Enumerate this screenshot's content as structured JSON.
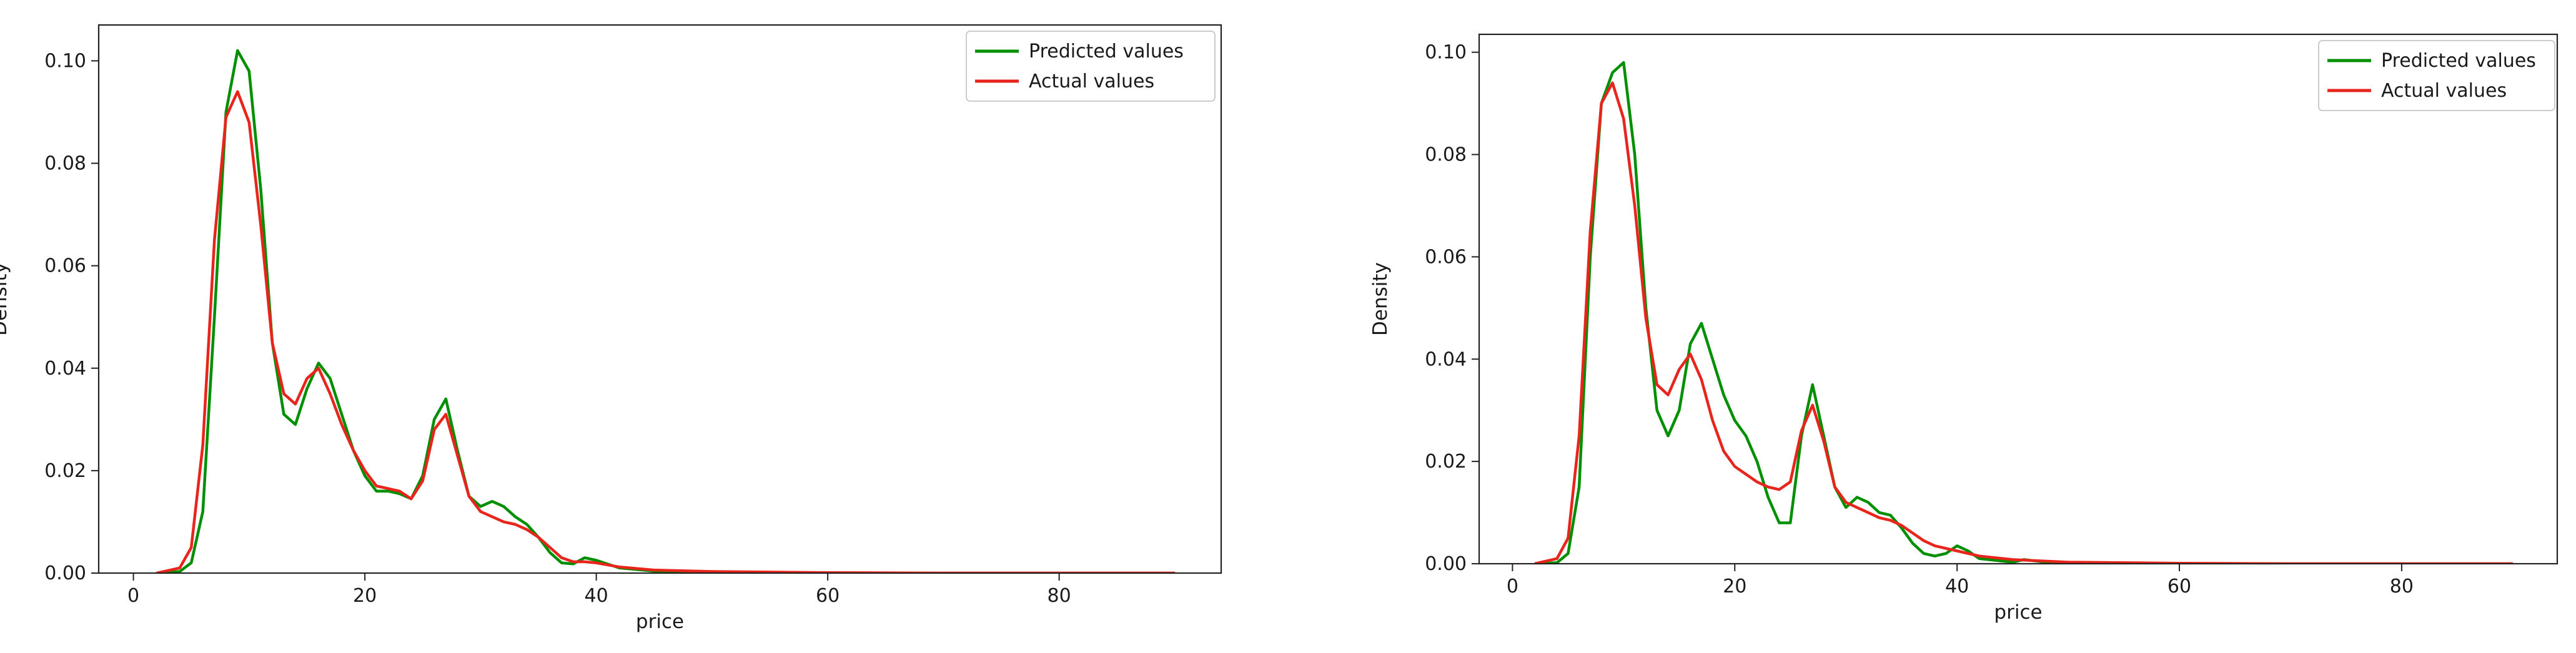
{
  "chart_data": [
    {
      "type": "line",
      "title": "",
      "xlabel": "price",
      "ylabel": "Density",
      "xlim": [
        -3,
        94
      ],
      "ylim": [
        0,
        0.107
      ],
      "xticks": [
        0,
        20,
        40,
        60,
        80
      ],
      "yticks": [
        0.0,
        0.02,
        0.04,
        0.06,
        0.08,
        0.1
      ],
      "ytick_labels": [
        "0.00",
        "0.02",
        "0.04",
        "0.06",
        "0.08",
        "0.10"
      ],
      "grid": false,
      "legend_position": "top-right",
      "series": [
        {
          "name": "Predicted values",
          "color": "#008f00",
          "points": [
            [
              2,
              0
            ],
            [
              4,
              0.0003
            ],
            [
              5,
              0.002
            ],
            [
              6,
              0.012
            ],
            [
              7,
              0.05
            ],
            [
              8,
              0.09
            ],
            [
              9,
              0.102
            ],
            [
              10,
              0.098
            ],
            [
              11,
              0.075
            ],
            [
              12,
              0.045
            ],
            [
              13,
              0.031
            ],
            [
              14,
              0.029
            ],
            [
              15,
              0.036
            ],
            [
              16,
              0.041
            ],
            [
              17,
              0.038
            ],
            [
              18,
              0.031
            ],
            [
              19,
              0.024
            ],
            [
              20,
              0.019
            ],
            [
              21,
              0.016
            ],
            [
              22,
              0.016
            ],
            [
              23,
              0.0155
            ],
            [
              24,
              0.0145
            ],
            [
              25,
              0.019
            ],
            [
              26,
              0.03
            ],
            [
              27,
              0.034
            ],
            [
              28,
              0.024
            ],
            [
              29,
              0.015
            ],
            [
              30,
              0.013
            ],
            [
              31,
              0.014
            ],
            [
              32,
              0.013
            ],
            [
              33,
              0.011
            ],
            [
              34,
              0.0095
            ],
            [
              35,
              0.007
            ],
            [
              36,
              0.004
            ],
            [
              37,
              0.002
            ],
            [
              38,
              0.0018
            ],
            [
              39,
              0.003
            ],
            [
              40,
              0.0025
            ],
            [
              42,
              0.001
            ],
            [
              45,
              0.0004
            ],
            [
              50,
              0.0002
            ],
            [
              60,
              0.0
            ],
            [
              70,
              0.0
            ],
            [
              80,
              0.0
            ],
            [
              90,
              0.0
            ]
          ]
        },
        {
          "name": "Actual values",
          "color": "#e8251c",
          "points": [
            [
              2,
              0
            ],
            [
              4,
              0.001
            ],
            [
              5,
              0.005
            ],
            [
              6,
              0.025
            ],
            [
              7,
              0.065
            ],
            [
              8,
              0.089
            ],
            [
              9,
              0.094
            ],
            [
              10,
              0.088
            ],
            [
              11,
              0.068
            ],
            [
              12,
              0.045
            ],
            [
              13,
              0.035
            ],
            [
              14,
              0.033
            ],
            [
              15,
              0.038
            ],
            [
              16,
              0.04
            ],
            [
              17,
              0.035
            ],
            [
              18,
              0.029
            ],
            [
              19,
              0.024
            ],
            [
              20,
              0.02
            ],
            [
              21,
              0.017
            ],
            [
              22,
              0.0165
            ],
            [
              23,
              0.016
            ],
            [
              24,
              0.0145
            ],
            [
              25,
              0.018
            ],
            [
              26,
              0.028
            ],
            [
              27,
              0.031
            ],
            [
              28,
              0.023
            ],
            [
              29,
              0.015
            ],
            [
              30,
              0.012
            ],
            [
              31,
              0.011
            ],
            [
              32,
              0.01
            ],
            [
              33,
              0.0095
            ],
            [
              34,
              0.0085
            ],
            [
              35,
              0.007
            ],
            [
              36,
              0.005
            ],
            [
              37,
              0.003
            ],
            [
              38,
              0.0022
            ],
            [
              39,
              0.0022
            ],
            [
              40,
              0.002
            ],
            [
              42,
              0.0012
            ],
            [
              45,
              0.0006
            ],
            [
              50,
              0.0003
            ],
            [
              60,
              0.0001
            ],
            [
              70,
              0.0
            ],
            [
              80,
              0.0
            ],
            [
              90,
              0.0
            ]
          ]
        }
      ]
    },
    {
      "type": "line",
      "title": "",
      "xlabel": "price",
      "ylabel": "Density",
      "xlim": [
        -3,
        94
      ],
      "ylim": [
        0,
        0.1035
      ],
      "xticks": [
        0,
        20,
        40,
        60,
        80
      ],
      "yticks": [
        0.0,
        0.02,
        0.04,
        0.06,
        0.08,
        0.1
      ],
      "ytick_labels": [
        "0.00",
        "0.02",
        "0.04",
        "0.06",
        "0.08",
        "0.10"
      ],
      "grid": false,
      "legend_position": "top-right",
      "series": [
        {
          "name": "Predicted values",
          "color": "#008f00",
          "points": [
            [
              2,
              0
            ],
            [
              4,
              0.0002
            ],
            [
              5,
              0.002
            ],
            [
              6,
              0.015
            ],
            [
              7,
              0.06
            ],
            [
              8,
              0.09
            ],
            [
              9,
              0.096
            ],
            [
              10,
              0.098
            ],
            [
              11,
              0.08
            ],
            [
              12,
              0.05
            ],
            [
              13,
              0.03
            ],
            [
              14,
              0.025
            ],
            [
              15,
              0.03
            ],
            [
              16,
              0.043
            ],
            [
              17,
              0.047
            ],
            [
              18,
              0.04
            ],
            [
              19,
              0.033
            ],
            [
              20,
              0.028
            ],
            [
              21,
              0.025
            ],
            [
              22,
              0.02
            ],
            [
              23,
              0.013
            ],
            [
              24,
              0.008
            ],
            [
              25,
              0.008
            ],
            [
              26,
              0.025
            ],
            [
              27,
              0.035
            ],
            [
              28,
              0.025
            ],
            [
              29,
              0.015
            ],
            [
              30,
              0.011
            ],
            [
              31,
              0.013
            ],
            [
              32,
              0.012
            ],
            [
              33,
              0.01
            ],
            [
              34,
              0.0095
            ],
            [
              35,
              0.007
            ],
            [
              36,
              0.004
            ],
            [
              37,
              0.002
            ],
            [
              38,
              0.0015
            ],
            [
              39,
              0.002
            ],
            [
              40,
              0.0035
            ],
            [
              41,
              0.0025
            ],
            [
              42,
              0.001
            ],
            [
              45,
              0.0003
            ],
            [
              46,
              0.0008
            ],
            [
              48,
              0.0003
            ],
            [
              50,
              0.0002
            ],
            [
              60,
              0.0
            ],
            [
              70,
              0.0
            ],
            [
              80,
              0.0
            ],
            [
              90,
              0.0
            ]
          ]
        },
        {
          "name": "Actual values",
          "color": "#e8251c",
          "points": [
            [
              2,
              0
            ],
            [
              4,
              0.001
            ],
            [
              5,
              0.005
            ],
            [
              6,
              0.025
            ],
            [
              7,
              0.065
            ],
            [
              8,
              0.09
            ],
            [
              9,
              0.094
            ],
            [
              10,
              0.087
            ],
            [
              11,
              0.07
            ],
            [
              12,
              0.048
            ],
            [
              13,
              0.035
            ],
            [
              14,
              0.033
            ],
            [
              15,
              0.038
            ],
            [
              16,
              0.041
            ],
            [
              17,
              0.036
            ],
            [
              18,
              0.028
            ],
            [
              19,
              0.022
            ],
            [
              20,
              0.019
            ],
            [
              21,
              0.0175
            ],
            [
              22,
              0.016
            ],
            [
              23,
              0.015
            ],
            [
              24,
              0.0145
            ],
            [
              25,
              0.016
            ],
            [
              26,
              0.026
            ],
            [
              27,
              0.031
            ],
            [
              28,
              0.024
            ],
            [
              29,
              0.015
            ],
            [
              30,
              0.012
            ],
            [
              31,
              0.011
            ],
            [
              32,
              0.01
            ],
            [
              33,
              0.009
            ],
            [
              34,
              0.0085
            ],
            [
              35,
              0.0075
            ],
            [
              36,
              0.006
            ],
            [
              37,
              0.0045
            ],
            [
              38,
              0.0035
            ],
            [
              39,
              0.003
            ],
            [
              40,
              0.0025
            ],
            [
              42,
              0.0015
            ],
            [
              45,
              0.0008
            ],
            [
              48,
              0.0005
            ],
            [
              50,
              0.0003
            ],
            [
              60,
              0.0001
            ],
            [
              70,
              0.0
            ],
            [
              80,
              0.0
            ],
            [
              90,
              0.0
            ]
          ]
        }
      ]
    }
  ]
}
